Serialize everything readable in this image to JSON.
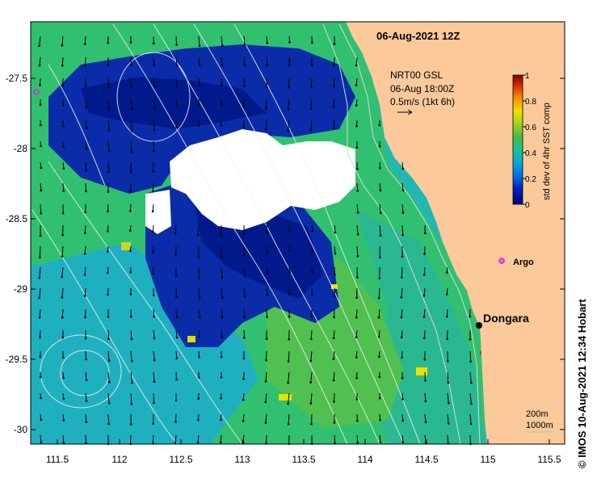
{
  "map": {
    "title": "06-Aug-2021 12Z",
    "product_lines": [
      "NRT00 GSL",
      "06-Aug 18:00Z",
      "0.5m/s (1kt 6h)"
    ],
    "y_ticks": [
      "-27.5",
      "-28",
      "-28.5",
      "-29",
      "-29.5",
      "-30"
    ],
    "x_ticks": [
      "111.5",
      "112",
      "112.5",
      "113",
      "113.5",
      "114",
      "114.5",
      "115",
      "115.5"
    ],
    "places": [
      {
        "name": "Dongara"
      }
    ],
    "argo_label": "Argo",
    "isobath_labels": [
      "200m",
      "1000m"
    ],
    "credit": "© IMOS 10-Aug-2021 12:34 Hobart",
    "colors": {
      "land": "#fbc99a",
      "cloud": "#ffffff",
      "argo": "#e020e0"
    }
  },
  "colorbar": {
    "label": "std dev of 4hr SST comp",
    "ticks": [
      "0",
      "0.2",
      "0.4",
      "0.6",
      "0.8",
      "1"
    ],
    "range": [
      0,
      1
    ],
    "colors": [
      "#000080",
      "#0020c0",
      "#0060e0",
      "#00a0e0",
      "#20c0a0",
      "#40c040",
      "#a0d020",
      "#f0e000",
      "#f08000",
      "#d02000",
      "#800000"
    ]
  }
}
